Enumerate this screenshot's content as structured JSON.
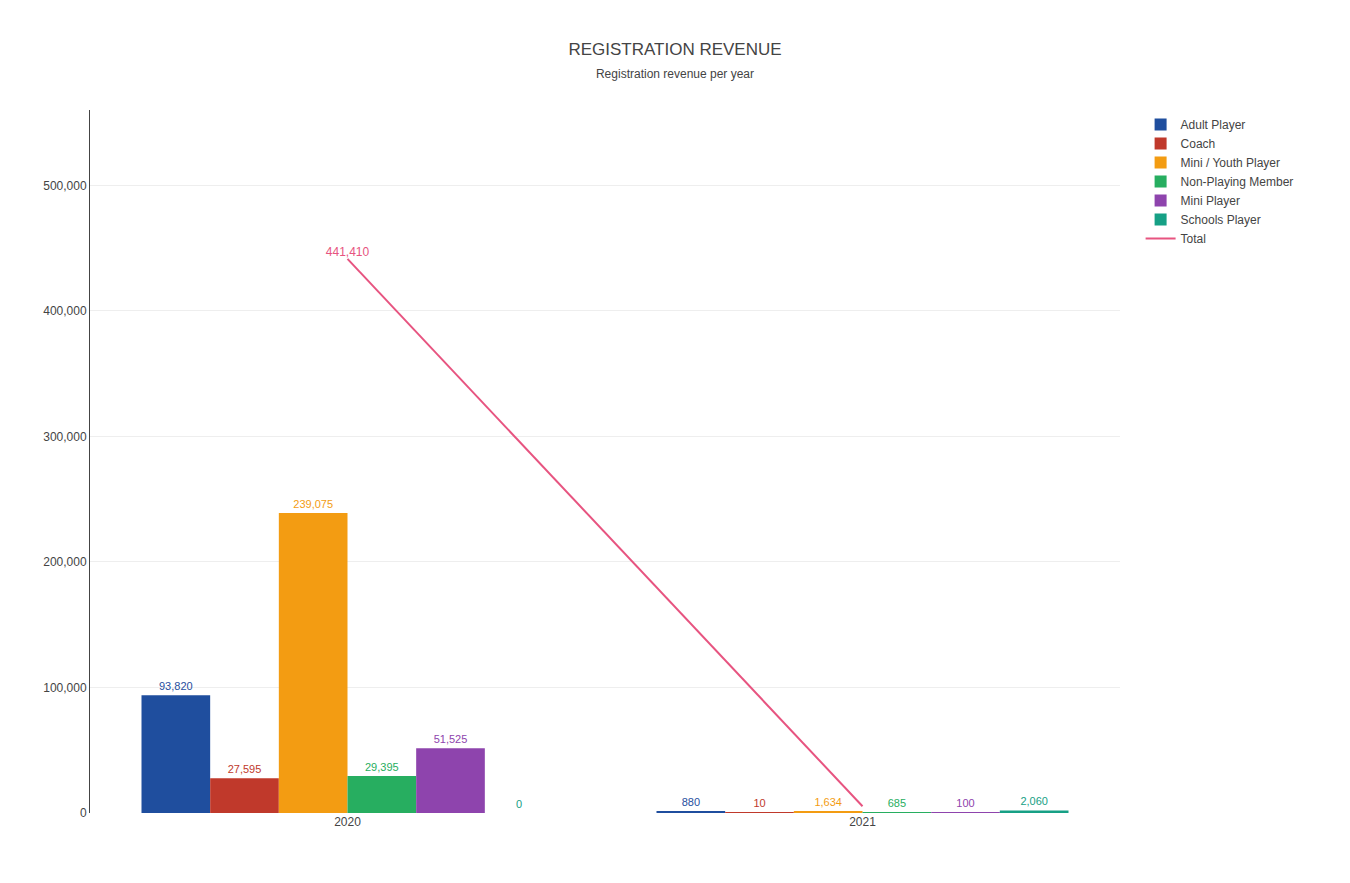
{
  "chart_data": {
    "type": "bar",
    "title": "REGISTRATION REVENUE",
    "subtitle": "Registration revenue per year",
    "categories": [
      "2020",
      "2021"
    ],
    "series": [
      {
        "name": "Adult Player",
        "color": "#1f4e9e",
        "values": [
          93820,
          880
        ],
        "value_labels": [
          "93,820",
          "880"
        ]
      },
      {
        "name": "Coach",
        "color": "#c0392b",
        "values": [
          27595,
          10
        ],
        "value_labels": [
          "27,595",
          "10"
        ]
      },
      {
        "name": "Mini / Youth Player",
        "color": "#f39c12",
        "values": [
          239075,
          1634
        ],
        "value_labels": [
          "239,075",
          "1,634"
        ]
      },
      {
        "name": "Non-Playing Member",
        "color": "#27ae60",
        "values": [
          29395,
          685
        ],
        "value_labels": [
          "29,395",
          "685"
        ]
      },
      {
        "name": "Mini Player",
        "color": "#8e44ad",
        "values": [
          51525,
          100
        ],
        "value_labels": [
          "51,525",
          "100"
        ]
      },
      {
        "name": "Schools Player",
        "color": "#16a085",
        "values": [
          0,
          2060
        ],
        "value_labels": [
          "0",
          "2,060"
        ]
      },
      {
        "name": "Total",
        "type": "line",
        "color": "#e75480",
        "values": [
          441410,
          5369
        ],
        "value_labels": [
          "441,410",
          null
        ]
      }
    ],
    "ylim": [
      0,
      560000
    ],
    "yticks": [
      0,
      {
        "value": 100000,
        "label": "100,000"
      },
      {
        "value": 200000,
        "label": "200,000"
      },
      {
        "value": 300000,
        "label": "300,000"
      },
      {
        "value": 400000,
        "label": "400,000"
      },
      {
        "value": 500000,
        "label": "500,000"
      }
    ],
    "grid": true,
    "legend": "right",
    "data_labels": true
  }
}
